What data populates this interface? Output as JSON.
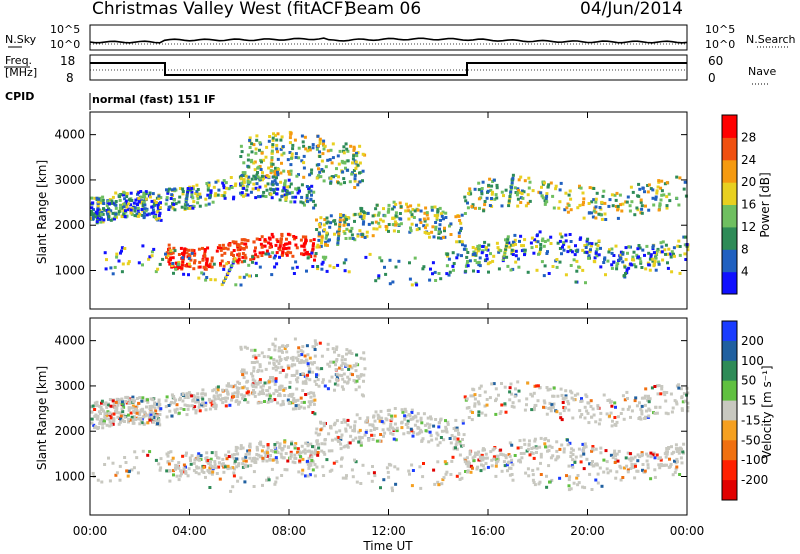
{
  "header": {
    "station": "Christmas Valley West (fitACF)",
    "beam": "Beam 06",
    "date": "04/Jun/2014"
  },
  "noise_panel": {
    "left_label": "N.Sky",
    "right_label": "N.Search",
    "left_ticks": [
      "10^5",
      "10^0"
    ],
    "right_ticks": [
      "10^5",
      "10^0"
    ]
  },
  "freq_panel": {
    "left_label_1": "Freq.",
    "left_label_2": "[MHz]",
    "right_label": "Nave",
    "left_ticks": [
      "18",
      "8"
    ],
    "right_ticks": [
      "60",
      "0"
    ]
  },
  "cpid": {
    "label": "CPID",
    "value": "normal (fast) 151 IF"
  },
  "chart_data": [
    {
      "type": "heatmap",
      "name": "power",
      "ylabel": "Slant Range [km]",
      "yticks": [
        1000,
        2000,
        3000,
        4000
      ],
      "ylim": [
        150,
        4500
      ],
      "colorbar_label": "Power [dB]",
      "colorbar_ticks": [
        4,
        8,
        12,
        16,
        20,
        24,
        28
      ],
      "colorbar_colors": [
        "#1010ff",
        "#2060c0",
        "#2e8b57",
        "#6fbf60",
        "#e8d020",
        "#f59a10",
        "#f05010",
        "#ff0000"
      ]
    },
    {
      "type": "heatmap",
      "name": "velocity",
      "ylabel": "Slant Range [km]",
      "yticks": [
        1000,
        2000,
        3000,
        4000
      ],
      "ylim": [
        150,
        4500
      ],
      "colorbar_label": "Velocity [m s⁻¹]",
      "colorbar_ticks": [
        200,
        100,
        50,
        15,
        -15,
        -50,
        -100,
        -200
      ],
      "colorbar_colors": [
        "#1a3cff",
        "#2060a0",
        "#2e8b57",
        "#60c040",
        "#c8c8c0",
        "#f5a020",
        "#f07010",
        "#ff2000",
        "#e00000"
      ]
    }
  ],
  "xaxis": {
    "label": "Time UT",
    "ticks": [
      "00:00",
      "04:00",
      "08:00",
      "12:00",
      "16:00",
      "20:00",
      "00:00"
    ]
  }
}
